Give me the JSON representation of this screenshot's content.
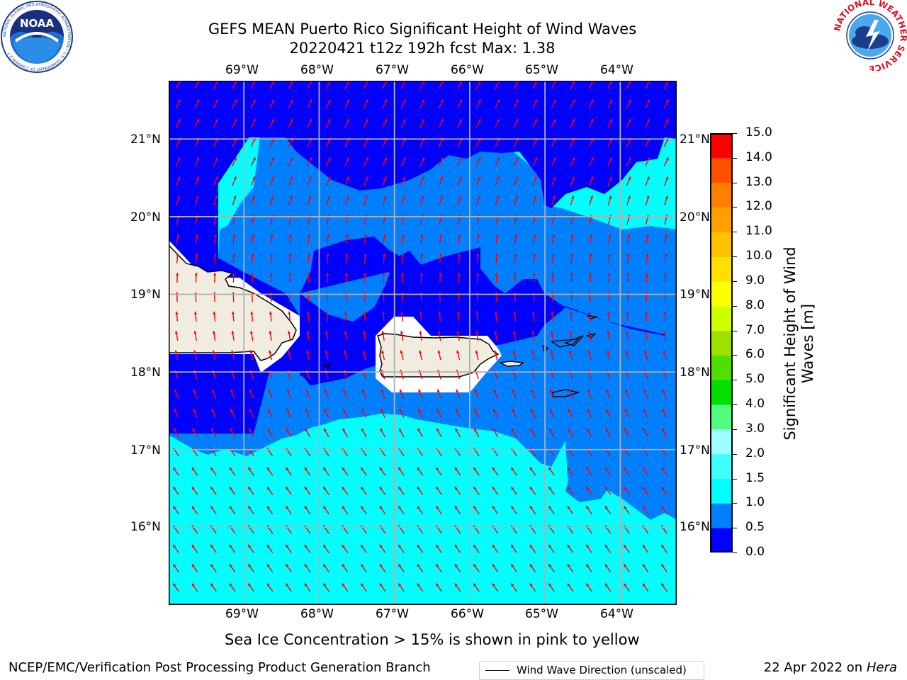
{
  "header": {
    "title_line1": "GEFS MEAN Puerto Rico Significant Height of Wind Waves",
    "title_line2": "20220421 t12z 192h fcst   Max: 1.38"
  },
  "logos": {
    "noaa_text": "NOAA",
    "noaa_ring_text": "NATIONAL OCEANIC AND ATMOSPHERIC ADMINISTRATION • U.S. DEPARTMENT OF COMMERCE •",
    "nws_ring_text": "NATIONAL WEATHER SERVICE"
  },
  "map": {
    "lon_labels": [
      "69°W",
      "68°W",
      "67°W",
      "66°W",
      "65°W",
      "64°W"
    ],
    "lat_labels": [
      "21°N",
      "20°N",
      "19°N",
      "18°N",
      "17°N",
      "16°N"
    ],
    "extent": {
      "lon_min": -70.0,
      "lon_max": -63.25,
      "lat_min": 15.0,
      "lat_max": 21.75
    },
    "legend_label": "Wind Wave Direction (unscaled)",
    "colors": {
      "land": "#f0ede0",
      "arrow": "#ff0000",
      "grid": "#b0b0b0"
    }
  },
  "colorbar": {
    "title": "Significant Height of Wind Waves [m]",
    "tick_labels": [
      "15.0",
      "14.0",
      "13.0",
      "12.0",
      "11.0",
      "10.0",
      "9.0",
      "8.0",
      "7.0",
      "6.0",
      "5.0",
      "4.0",
      "3.0",
      "2.0",
      "1.5",
      "1.0",
      "0.5",
      "0.0"
    ],
    "levels": [
      0.0,
      0.5,
      1.0,
      1.5,
      2.0,
      3.0,
      4.0,
      5.0,
      6.0,
      7.0,
      8.0,
      9.0,
      10.0,
      11.0,
      12.0,
      13.0,
      14.0,
      15.0
    ],
    "colors": [
      "#0000ff",
      "#0080ff",
      "#00ffff",
      "#40ffff",
      "#a0ffff",
      "#50ff80",
      "#00e000",
      "#50e000",
      "#a0e000",
      "#d0ff00",
      "#ffff00",
      "#ffe000",
      "#ffc000",
      "#ffa000",
      "#ff8000",
      "#ff5000",
      "#ff0000"
    ]
  },
  "notes": {
    "sea_ice": "Sea Ice Concentration > 15% is shown in pink to yellow"
  },
  "footer": {
    "left": "NCEP/EMC/Verification Post Processing Product Generation Branch",
    "right_prefix": "22 Apr 2022 on ",
    "right_host": "Hera"
  }
}
